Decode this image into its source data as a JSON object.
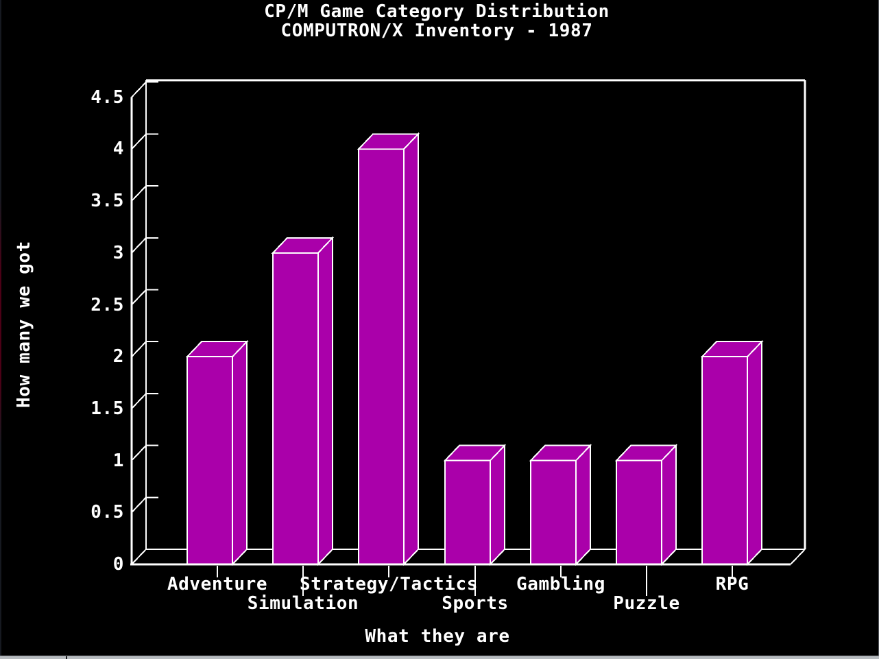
{
  "chart_data": {
    "type": "bar",
    "style": "3d-blocks",
    "title": "CP/M Game Category Distribution",
    "subtitle": "COMPUTRON/X Inventory - 1987",
    "xlabel": "What they are",
    "ylabel": "How many we got",
    "categories": [
      "Adventure",
      "Simulation",
      "Strategy/Tactics",
      "Sports",
      "Gambling",
      "Puzzle",
      "RPG"
    ],
    "values": [
      2,
      3,
      4,
      1,
      1,
      1,
      2
    ],
    "ylim": [
      0,
      4.5
    ],
    "ytick_step": 0.5,
    "ytick_labels": [
      "0",
      "0.5",
      "1",
      "1.5",
      "2",
      "2.5",
      "3",
      "3.5",
      "4",
      "4.5"
    ],
    "legend": "none",
    "grid": "off",
    "colors": {
      "bar_fill": "#aa00aa",
      "outline": "#ffffff",
      "background": "#000000",
      "text": "#ffffff"
    }
  },
  "window": {
    "scrollbar_color": "#b7bbbf"
  }
}
